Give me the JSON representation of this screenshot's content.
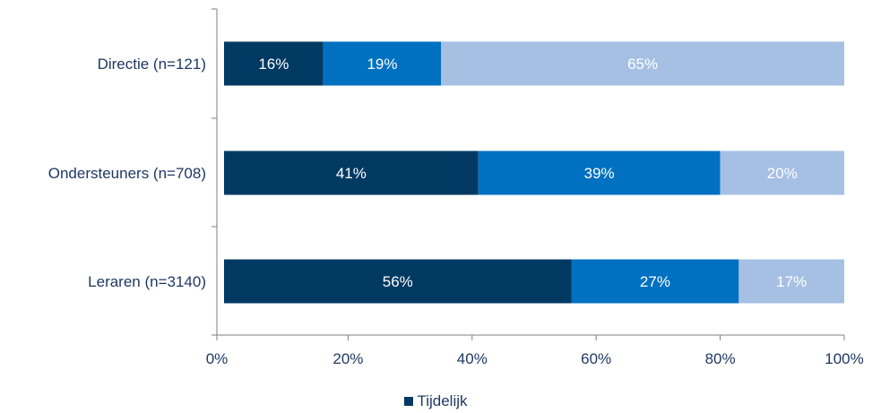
{
  "chart_data": {
    "type": "bar",
    "orientation": "horizontal",
    "stacked": true,
    "categories": [
      "Directie (n=121)",
      "Ondersteuners (n=708)",
      "Leraren (n=3140)"
    ],
    "series": [
      {
        "name": "Tijdelijk",
        "color": "#003a63",
        "values": [
          16,
          41,
          56
        ],
        "labels": [
          "16%",
          "41%",
          "56%"
        ]
      },
      {
        "color": "#0070c0",
        "values": [
          19,
          39,
          27
        ],
        "labels": [
          "19%",
          "39%",
          "27%"
        ]
      },
      {
        "color": "#a6c0e4",
        "values": [
          65,
          20,
          17
        ],
        "labels": [
          "65%",
          "20%",
          "17%"
        ]
      }
    ],
    "x_ticks": [
      "0%",
      "20%",
      "40%",
      "60%",
      "80%",
      "100%"
    ],
    "xlim": [
      0,
      100
    ],
    "grid": false,
    "legend_position": "bottom"
  }
}
